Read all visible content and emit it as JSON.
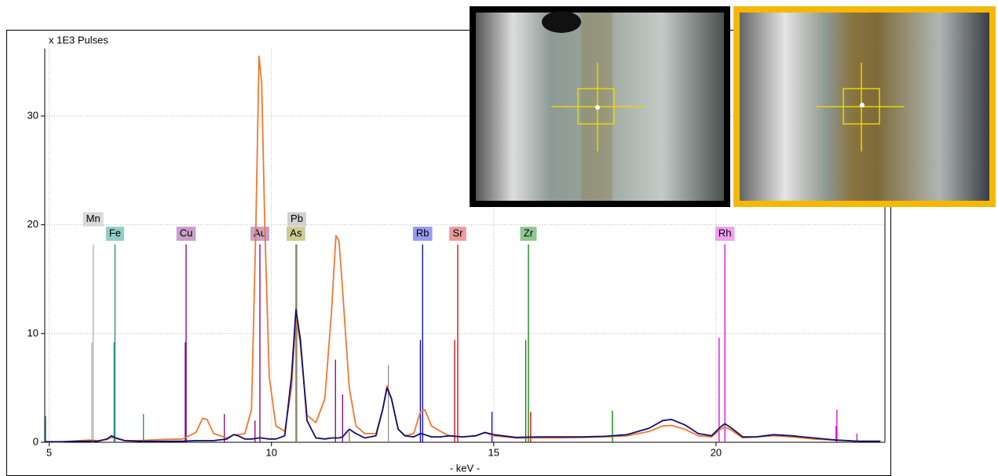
{
  "chart_data": {
    "type": "line",
    "title": "x 1E3 Pulses",
    "x_label": "- keV -",
    "xlim": [
      4.9,
      23.8
    ],
    "ylim": [
      0,
      36.2
    ],
    "xticks": [
      5,
      10,
      15,
      20
    ],
    "yticks": [
      0,
      10,
      20,
      30
    ],
    "grid": true,
    "x": [
      4.9,
      5.3,
      5.7,
      5.9,
      6.1,
      6.3,
      6.4,
      6.5,
      6.7,
      7.0,
      7.5,
      8.0,
      8.3,
      8.45,
      8.55,
      8.7,
      9.0,
      9.15,
      9.25,
      9.4,
      9.55,
      9.65,
      9.72,
      9.78,
      9.85,
      9.95,
      10.1,
      10.3,
      10.45,
      10.55,
      10.65,
      10.8,
      11.0,
      11.2,
      11.35,
      11.45,
      11.52,
      11.6,
      11.75,
      11.9,
      12.1,
      12.35,
      12.5,
      12.6,
      12.7,
      12.85,
      13.0,
      13.2,
      13.35,
      13.45,
      13.6,
      13.8,
      14.0,
      14.3,
      14.6,
      14.8,
      15.0,
      15.5,
      16,
      16.5,
      17,
      17.5,
      18,
      18.5,
      18.8,
      19.0,
      19.3,
      19.6,
      19.9,
      20.1,
      20.2,
      20.35,
      20.6,
      20.9,
      21.3,
      21.7,
      22.2,
      22.7,
      23.2,
      23.7
    ],
    "series": [
      {
        "color": "#f07830",
        "values": [
          0.0,
          0.05,
          0.15,
          0.2,
          0.15,
          0.25,
          0.45,
          0.35,
          0.15,
          0.15,
          0.25,
          0.3,
          0.9,
          2.2,
          2.1,
          0.8,
          0.4,
          0.7,
          0.7,
          0.8,
          3,
          20,
          35.5,
          33,
          20,
          6,
          1.5,
          1.0,
          5,
          11.5,
          9,
          2.5,
          1.8,
          4,
          12,
          19,
          18.5,
          14,
          5,
          1.5,
          0.8,
          0.8,
          3,
          5.2,
          4,
          1.2,
          0.6,
          0.8,
          2.8,
          3.0,
          1.5,
          1.0,
          0.6,
          0.5,
          0.6,
          0.9,
          0.6,
          0.4,
          0.4,
          0.4,
          0.45,
          0.5,
          0.6,
          1.0,
          1.5,
          1.55,
          1.2,
          0.6,
          0.5,
          1.2,
          1.4,
          1.1,
          0.4,
          0.5,
          0.6,
          0.5,
          0.3,
          0.2,
          0.1,
          0.1
        ]
      },
      {
        "color": "#101070",
        "values": [
          0.05,
          0.05,
          0.1,
          0.1,
          0.1,
          0.3,
          0.6,
          0.4,
          0.15,
          0.1,
          0.1,
          0.1,
          0.15,
          0.15,
          0.15,
          0.15,
          0.3,
          0.7,
          0.6,
          0.3,
          0.3,
          0.35,
          0.4,
          0.4,
          0.35,
          0.3,
          0.3,
          0.6,
          6,
          12.2,
          9.5,
          2,
          0.4,
          0.3,
          0.4,
          0.4,
          0.4,
          0.5,
          1.2,
          0.8,
          0.4,
          0.6,
          3,
          5.0,
          4,
          1.2,
          0.6,
          0.5,
          0.8,
          0.7,
          0.5,
          0.5,
          0.6,
          0.5,
          0.6,
          0.9,
          0.7,
          0.45,
          0.5,
          0.5,
          0.5,
          0.55,
          0.7,
          1.3,
          2.0,
          2.1,
          1.6,
          0.8,
          0.6,
          1.4,
          1.7,
          1.3,
          0.5,
          0.5,
          0.7,
          0.6,
          0.4,
          0.2,
          0.1,
          0.1
        ]
      }
    ],
    "markers": [
      {
        "label": "Mn",
        "color": "#b0b0b0",
        "label_color": "#d9d9d9",
        "x": [
          5.99,
          5.96
        ],
        "heights": [
          18.2,
          9.2
        ]
      },
      {
        "label": "Fe",
        "color": "#209080",
        "label_color": "#90cfc8",
        "x": [
          6.48,
          6.46,
          7.12,
          4.92
        ],
        "heights": [
          18.2,
          9.2,
          2.6,
          2.4
        ]
      },
      {
        "label": "Cu",
        "color": "#800080",
        "label_color": "#c9a0c9",
        "x": [
          8.08,
          8.06,
          8.94
        ],
        "heights": [
          18.2,
          9.2,
          2.6
        ]
      },
      {
        "label": "Au",
        "color": "#800080",
        "label_color": "#c9a0c9",
        "x": [
          9.74,
          9.63,
          11.44,
          11.6
        ],
        "heights": [
          18.2,
          2.0,
          7.6,
          4.4
        ]
      },
      {
        "label": "Pb",
        "color": "#909090",
        "label_color": "#d0d0d0",
        "x": [
          10.57,
          12.63
        ],
        "heights": [
          18.2,
          7.1
        ]
      },
      {
        "label": "As",
        "color": "#808040",
        "label_color": "#cccc90",
        "x": [
          10.55,
          11.75
        ],
        "heights": [
          18.2,
          1.0
        ]
      },
      {
        "label": "Rb",
        "color": "#0000c0",
        "label_color": "#9a9af0",
        "x": [
          13.4,
          13.35,
          14.96
        ],
        "heights": [
          18.2,
          9.4,
          2.8
        ]
      },
      {
        "label": "Sr",
        "color": "#e00000",
        "label_color": "#f09a9a",
        "x": [
          14.19,
          14.12,
          15.83
        ],
        "heights": [
          18.2,
          9.4,
          2.8
        ]
      },
      {
        "label": "Zr",
        "color": "#008000",
        "label_color": "#90c890",
        "x": [
          15.78,
          15.72,
          17.67
        ],
        "heights": [
          18.2,
          9.4,
          2.9
        ]
      },
      {
        "label": "Rh",
        "color": "#e000e0",
        "label_color": "#f0a0f0",
        "x": [
          20.2,
          20.07,
          22.72,
          22.7,
          23.17
        ],
        "heights": [
          18.2,
          9.6,
          3.0,
          1.5,
          0.8
        ]
      }
    ]
  }
}
